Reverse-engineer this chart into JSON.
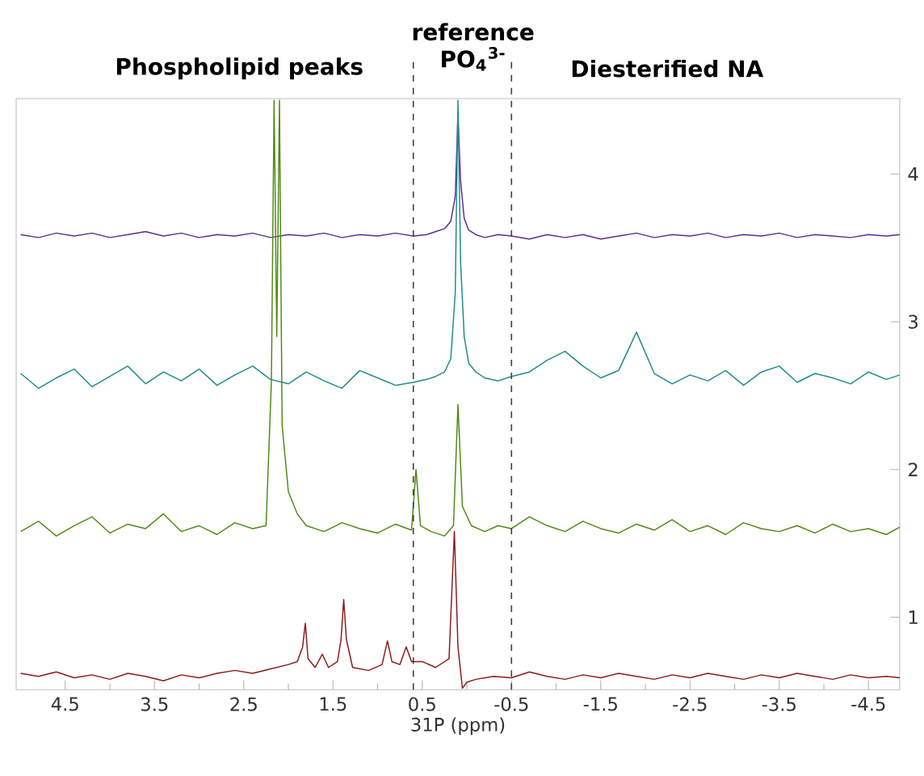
{
  "chart_data": {
    "type": "line",
    "xlabel": "31P (ppm)",
    "annotations": [
      "Phospholipid peaks",
      "reference PO$_{4}$$^{3-}$",
      "Diesterified NA"
    ],
    "xlim": [
      5.05,
      -4.85
    ],
    "xticks": [
      4.5,
      3.5,
      2.5,
      1.5,
      0.5,
      -0.5,
      -1.5,
      -2.5,
      -3.5,
      -4.5
    ],
    "ylim": [
      0.51,
      4.51
    ],
    "yticks": [
      1,
      2,
      3,
      4
    ],
    "grid": false,
    "marker": "none",
    "line_style": "solid",
    "ref_lines": [
      {
        "axis": "x",
        "value": 0.6,
        "color": "#404040",
        "line_style": "dashed"
      },
      {
        "axis": "x",
        "value": -0.5,
        "color": "#404040",
        "line_style": "dashed"
      }
    ],
    "series": [
      {
        "color": "#5c2d91",
        "x": [
          5.0,
          4.8,
          4.6,
          4.4,
          4.2,
          4.0,
          3.8,
          3.6,
          3.4,
          3.2,
          3.0,
          2.8,
          2.6,
          2.4,
          2.2,
          2.0,
          1.8,
          1.6,
          1.4,
          1.2,
          1.0,
          0.8,
          0.6,
          0.45,
          0.35,
          0.25,
          0.18,
          0.13,
          0.1,
          0.07,
          0.03,
          -0.02,
          -0.1,
          -0.2,
          -0.35,
          -0.5,
          -0.7,
          -0.9,
          -1.1,
          -1.3,
          -1.5,
          -1.7,
          -1.9,
          -2.1,
          -2.3,
          -2.5,
          -2.7,
          -2.9,
          -3.1,
          -3.3,
          -3.5,
          -3.7,
          -3.9,
          -4.1,
          -4.3,
          -4.5,
          -4.7,
          -4.85
        ],
        "values": [
          3.59,
          3.57,
          3.6,
          3.58,
          3.6,
          3.57,
          3.59,
          3.61,
          3.58,
          3.6,
          3.57,
          3.59,
          3.58,
          3.6,
          3.57,
          3.59,
          3.58,
          3.6,
          3.57,
          3.59,
          3.58,
          3.6,
          3.58,
          3.59,
          3.61,
          3.63,
          3.68,
          3.85,
          4.4,
          3.95,
          3.7,
          3.62,
          3.59,
          3.57,
          3.59,
          3.58,
          3.56,
          3.59,
          3.57,
          3.59,
          3.56,
          3.58,
          3.6,
          3.57,
          3.59,
          3.58,
          3.6,
          3.57,
          3.59,
          3.58,
          3.6,
          3.57,
          3.59,
          3.58,
          3.57,
          3.59,
          3.58,
          3.59
        ]
      },
      {
        "color": "#1f8a8a",
        "x": [
          5.0,
          4.8,
          4.6,
          4.4,
          4.2,
          4.0,
          3.8,
          3.6,
          3.4,
          3.2,
          3.0,
          2.8,
          2.6,
          2.4,
          2.2,
          2.0,
          1.8,
          1.6,
          1.4,
          1.2,
          1.0,
          0.8,
          0.6,
          0.45,
          0.35,
          0.25,
          0.18,
          0.13,
          0.1,
          0.07,
          0.03,
          -0.02,
          -0.1,
          -0.2,
          -0.35,
          -0.5,
          -0.7,
          -0.9,
          -1.1,
          -1.3,
          -1.5,
          -1.7,
          -1.9,
          -2.1,
          -2.3,
          -2.5,
          -2.7,
          -2.9,
          -3.1,
          -3.3,
          -3.5,
          -3.7,
          -3.9,
          -4.1,
          -4.3,
          -4.5,
          -4.7,
          -4.85
        ],
        "values": [
          2.65,
          2.55,
          2.62,
          2.68,
          2.56,
          2.63,
          2.7,
          2.58,
          2.66,
          2.6,
          2.68,
          2.57,
          2.64,
          2.7,
          2.61,
          2.58,
          2.66,
          2.6,
          2.55,
          2.67,
          2.62,
          2.57,
          2.59,
          2.61,
          2.63,
          2.66,
          2.75,
          3.2,
          4.5,
          3.4,
          2.9,
          2.72,
          2.66,
          2.62,
          2.6,
          2.63,
          2.66,
          2.74,
          2.8,
          2.7,
          2.62,
          2.67,
          2.93,
          2.65,
          2.58,
          2.64,
          2.6,
          2.67,
          2.57,
          2.66,
          2.7,
          2.59,
          2.65,
          2.62,
          2.58,
          2.66,
          2.61,
          2.64
        ]
      },
      {
        "color": "#4e8a12",
        "x": [
          5.0,
          4.8,
          4.6,
          4.4,
          4.2,
          4.0,
          3.8,
          3.6,
          3.4,
          3.2,
          3.0,
          2.8,
          2.6,
          2.4,
          2.25,
          2.19,
          2.16,
          2.13,
          2.1,
          2.07,
          2.0,
          1.9,
          1.8,
          1.6,
          1.4,
          1.2,
          1.0,
          0.8,
          0.62,
          0.57,
          0.52,
          0.4,
          0.25,
          0.15,
          0.1,
          0.05,
          -0.05,
          -0.2,
          -0.35,
          -0.5,
          -0.7,
          -0.9,
          -1.1,
          -1.3,
          -1.5,
          -1.7,
          -1.9,
          -2.1,
          -2.3,
          -2.5,
          -2.7,
          -2.9,
          -3.1,
          -3.3,
          -3.5,
          -3.7,
          -3.9,
          -4.1,
          -4.3,
          -4.5,
          -4.7,
          -4.85
        ],
        "values": [
          1.58,
          1.65,
          1.55,
          1.62,
          1.68,
          1.57,
          1.63,
          1.6,
          1.7,
          1.58,
          1.62,
          1.56,
          1.64,
          1.6,
          1.62,
          2.6,
          4.5,
          2.9,
          4.5,
          2.3,
          1.85,
          1.7,
          1.62,
          1.58,
          1.64,
          1.6,
          1.57,
          1.63,
          1.59,
          2.0,
          1.62,
          1.58,
          1.55,
          1.62,
          2.44,
          1.75,
          1.62,
          1.58,
          1.62,
          1.6,
          1.68,
          1.62,
          1.58,
          1.65,
          1.6,
          1.57,
          1.63,
          1.59,
          1.66,
          1.58,
          1.62,
          1.56,
          1.64,
          1.6,
          1.58,
          1.62,
          1.57,
          1.63,
          1.58,
          1.6,
          1.56,
          1.61
        ]
      },
      {
        "color": "#8b1a1a",
        "x": [
          5.0,
          4.8,
          4.6,
          4.4,
          4.2,
          4.0,
          3.8,
          3.6,
          3.4,
          3.2,
          3.0,
          2.8,
          2.6,
          2.4,
          2.2,
          2.0,
          1.9,
          1.84,
          1.81,
          1.78,
          1.7,
          1.62,
          1.55,
          1.45,
          1.41,
          1.38,
          1.35,
          1.28,
          1.1,
          0.95,
          0.89,
          0.84,
          0.75,
          0.68,
          0.62,
          0.5,
          0.35,
          0.2,
          0.14,
          0.1,
          0.05,
          0.0,
          -0.1,
          -0.3,
          -0.5,
          -0.7,
          -0.9,
          -1.1,
          -1.3,
          -1.5,
          -1.7,
          -1.9,
          -2.1,
          -2.3,
          -2.5,
          -2.7,
          -2.9,
          -3.1,
          -3.3,
          -3.5,
          -3.7,
          -3.9,
          -4.1,
          -4.3,
          -4.5,
          -4.7,
          -4.85
        ],
        "values": [
          0.62,
          0.6,
          0.63,
          0.59,
          0.61,
          0.58,
          0.62,
          0.6,
          0.57,
          0.61,
          0.59,
          0.62,
          0.64,
          0.62,
          0.65,
          0.68,
          0.7,
          0.8,
          0.96,
          0.72,
          0.66,
          0.75,
          0.66,
          0.7,
          0.85,
          1.12,
          0.85,
          0.66,
          0.64,
          0.68,
          0.84,
          0.7,
          0.68,
          0.8,
          0.7,
          0.7,
          0.66,
          0.72,
          1.58,
          0.8,
          0.52,
          0.56,
          0.58,
          0.6,
          0.59,
          0.63,
          0.6,
          0.58,
          0.61,
          0.59,
          0.62,
          0.6,
          0.58,
          0.61,
          0.59,
          0.62,
          0.6,
          0.58,
          0.61,
          0.59,
          0.62,
          0.6,
          0.58,
          0.61,
          0.59,
          0.6,
          0.59
        ]
      }
    ]
  }
}
